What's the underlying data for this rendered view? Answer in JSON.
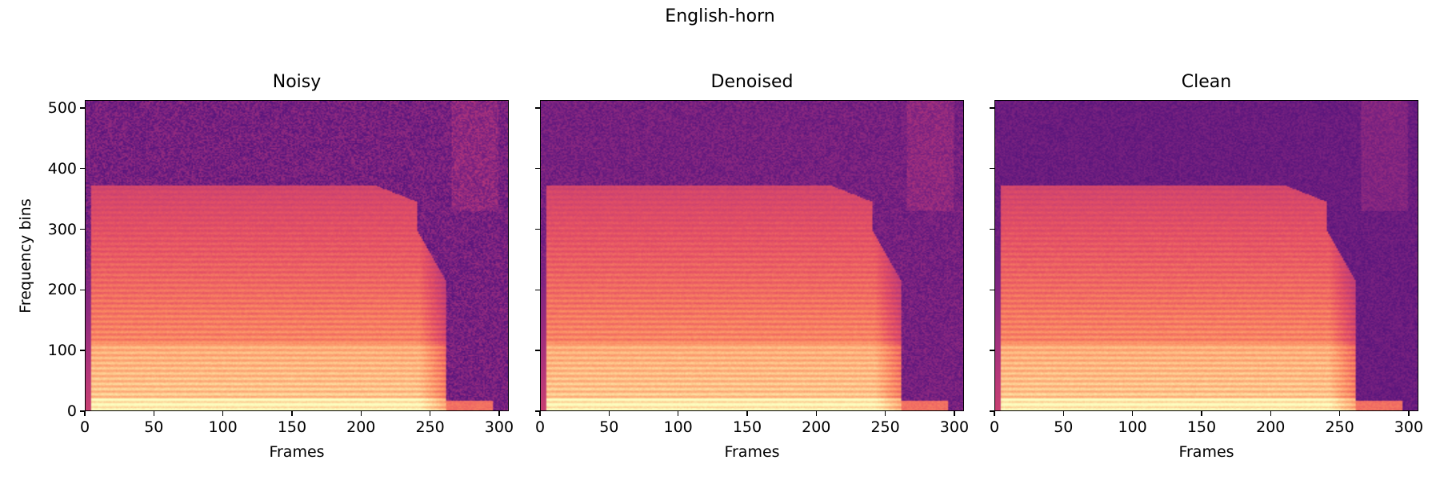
{
  "figure": {
    "suptitle": "English-horn"
  },
  "chart_data": [
    {
      "type": "heatmap",
      "title": "Noisy",
      "xlabel": "Frames",
      "ylabel": "Frequency bins",
      "xlim": [
        0,
        307
      ],
      "ylim": [
        0,
        513
      ],
      "x_ticks": [
        0,
        50,
        100,
        150,
        200,
        250,
        300
      ],
      "y_ticks": [
        0,
        100,
        200,
        300,
        400,
        500
      ],
      "colormap": "magma",
      "noise_floor": "high",
      "note_onset_frame": 4,
      "note_release_frame": 262,
      "harmonic_ceiling_bin": 372,
      "harmonic_spacing_bins": 8.6
    },
    {
      "type": "heatmap",
      "title": "Denoised",
      "xlabel": "Frames",
      "ylabel": "",
      "xlim": [
        0,
        307
      ],
      "ylim": [
        0,
        513
      ],
      "x_ticks": [
        0,
        50,
        100,
        150,
        200,
        250,
        300
      ],
      "y_ticks": [
        0,
        100,
        200,
        300,
        400,
        500
      ],
      "colormap": "magma",
      "noise_floor": "medium",
      "note_onset_frame": 4,
      "note_release_frame": 262,
      "harmonic_ceiling_bin": 372,
      "harmonic_spacing_bins": 8.6
    },
    {
      "type": "heatmap",
      "title": "Clean",
      "xlabel": "Frames",
      "ylabel": "",
      "xlim": [
        0,
        307
      ],
      "ylim": [
        0,
        513
      ],
      "x_ticks": [
        0,
        50,
        100,
        150,
        200,
        250,
        300
      ],
      "y_ticks": [
        0,
        100,
        200,
        300,
        400,
        500
      ],
      "colormap": "magma",
      "noise_floor": "low",
      "note_onset_frame": 4,
      "note_release_frame": 262,
      "harmonic_ceiling_bin": 372,
      "harmonic_spacing_bins": 8.6
    }
  ]
}
